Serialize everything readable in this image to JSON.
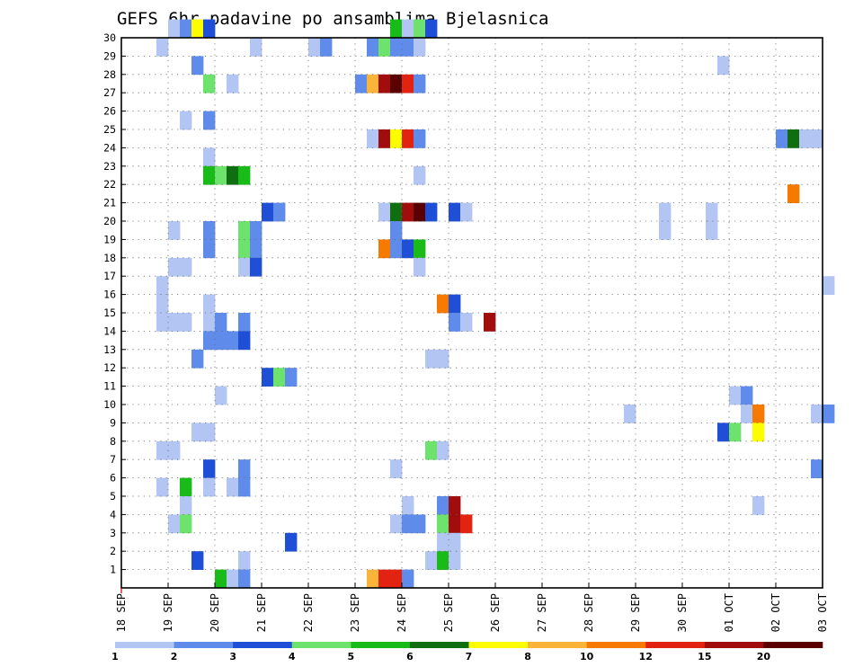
{
  "chart_data": {
    "type": "heatmap",
    "title": "GEFS 6hr padavine po ansamblima Bjelasnica",
    "ylim": [
      0,
      30
    ],
    "y_ticks": [
      "1",
      "2",
      "3",
      "4",
      "5",
      "6",
      "7",
      "8",
      "9",
      "10",
      "11",
      "12",
      "13",
      "14",
      "15",
      "16",
      "17",
      "18",
      "19",
      "20",
      "21",
      "22",
      "23",
      "24",
      "25",
      "26",
      "27",
      "28",
      "29",
      "30"
    ],
    "x_ticks": [
      "18 SEP",
      "19 SEP",
      "20 SEP",
      "21 SEP",
      "22 SEP",
      "23 SEP",
      "24 SEP",
      "25 SEP",
      "26 SEP",
      "27 SEP",
      "28 SEP",
      "29 SEP",
      "30 SEP",
      "01 OCT",
      "02 OCT",
      "03 OCT"
    ],
    "x_start": "18 SEP",
    "step_hours": 6,
    "grid": true,
    "colorbar": {
      "levels": [
        "1",
        "2",
        "3",
        "4",
        "5",
        "6",
        "7",
        "8",
        "10",
        "12",
        "15",
        "20"
      ],
      "colors": [
        "#b3c6f3",
        "#5f8ceb",
        "#1f4fd6",
        "#6de36d",
        "#19bb19",
        "#0f6e0f",
        "#fdfd00",
        "#fbb43a",
        "#f77a00",
        "#e32312",
        "#a10c0c",
        "#5a0000"
      ]
    },
    "cells": [
      [
        30,
        4,
        0
      ],
      [
        30,
        5,
        1
      ],
      [
        30,
        6,
        6
      ],
      [
        30,
        7,
        2
      ],
      [
        30,
        23,
        4
      ],
      [
        30,
        24,
        0
      ],
      [
        30,
        25,
        3
      ],
      [
        30,
        26,
        2
      ],
      [
        29,
        3,
        0
      ],
      [
        29,
        11,
        0
      ],
      [
        29,
        16,
        0
      ],
      [
        29,
        17,
        1
      ],
      [
        29,
        21,
        1
      ],
      [
        29,
        22,
        3
      ],
      [
        29,
        23,
        1
      ],
      [
        29,
        24,
        1
      ],
      [
        29,
        25,
        0
      ],
      [
        28,
        6,
        1
      ],
      [
        28,
        51,
        0
      ],
      [
        27,
        7,
        3
      ],
      [
        27,
        9,
        0
      ],
      [
        27,
        20,
        1
      ],
      [
        27,
        21,
        7
      ],
      [
        27,
        22,
        10
      ],
      [
        27,
        23,
        11
      ],
      [
        27,
        24,
        9
      ],
      [
        27,
        25,
        1
      ],
      [
        25,
        5,
        0
      ],
      [
        25,
        7,
        1
      ],
      [
        24,
        21,
        0
      ],
      [
        24,
        22,
        10
      ],
      [
        24,
        23,
        6
      ],
      [
        24,
        24,
        9
      ],
      [
        24,
        25,
        1
      ],
      [
        24,
        56,
        1
      ],
      [
        24,
        57,
        5
      ],
      [
        24,
        58,
        0
      ],
      [
        24,
        59,
        0
      ],
      [
        23,
        7,
        0
      ],
      [
        22,
        7,
        4
      ],
      [
        22,
        8,
        3
      ],
      [
        22,
        9,
        5
      ],
      [
        22,
        10,
        4
      ],
      [
        22,
        25,
        0
      ],
      [
        21,
        57,
        8
      ],
      [
        20,
        12,
        2
      ],
      [
        20,
        13,
        1
      ],
      [
        20,
        22,
        0
      ],
      [
        20,
        23,
        5
      ],
      [
        20,
        24,
        10
      ],
      [
        20,
        25,
        11
      ],
      [
        20,
        26,
        2
      ],
      [
        20,
        28,
        2
      ],
      [
        20,
        29,
        0
      ],
      [
        20,
        46,
        0
      ],
      [
        20,
        50,
        0
      ],
      [
        19,
        4,
        0
      ],
      [
        19,
        7,
        1
      ],
      [
        19,
        10,
        3
      ],
      [
        19,
        11,
        1
      ],
      [
        19,
        23,
        1
      ],
      [
        19,
        46,
        0
      ],
      [
        19,
        50,
        0
      ],
      [
        18,
        7,
        1
      ],
      [
        18,
        10,
        3
      ],
      [
        18,
        11,
        1
      ],
      [
        18,
        22,
        8
      ],
      [
        18,
        23,
        1
      ],
      [
        18,
        24,
        2
      ],
      [
        18,
        25,
        4
      ],
      [
        17,
        4,
        0
      ],
      [
        17,
        5,
        0
      ],
      [
        17,
        10,
        0
      ],
      [
        17,
        11,
        2
      ],
      [
        17,
        25,
        0
      ],
      [
        16,
        3,
        0
      ],
      [
        16,
        60,
        0
      ],
      [
        15,
        3,
        0
      ],
      [
        15,
        7,
        0
      ],
      [
        15,
        27,
        8
      ],
      [
        15,
        28,
        2
      ],
      [
        14,
        3,
        0
      ],
      [
        14,
        4,
        0
      ],
      [
        14,
        5,
        0
      ],
      [
        14,
        7,
        0
      ],
      [
        14,
        8,
        1
      ],
      [
        14,
        10,
        1
      ],
      [
        14,
        28,
        1
      ],
      [
        14,
        29,
        0
      ],
      [
        14,
        31,
        10
      ],
      [
        13,
        7,
        1
      ],
      [
        13,
        8,
        1
      ],
      [
        13,
        9,
        1
      ],
      [
        13,
        10,
        2
      ],
      [
        12,
        6,
        1
      ],
      [
        12,
        26,
        0
      ],
      [
        12,
        27,
        0
      ],
      [
        11,
        12,
        2
      ],
      [
        11,
        13,
        3
      ],
      [
        11,
        14,
        1
      ],
      [
        10,
        8,
        0
      ],
      [
        10,
        52,
        0
      ],
      [
        10,
        53,
        1
      ],
      [
        9,
        43,
        0
      ],
      [
        9,
        53,
        0
      ],
      [
        9,
        54,
        8
      ],
      [
        9,
        59,
        0
      ],
      [
        9,
        60,
        1
      ],
      [
        8,
        6,
        0
      ],
      [
        8,
        7,
        0
      ],
      [
        8,
        51,
        2
      ],
      [
        8,
        52,
        3
      ],
      [
        8,
        54,
        6
      ],
      [
        7,
        3,
        0
      ],
      [
        7,
        4,
        0
      ],
      [
        7,
        26,
        3
      ],
      [
        7,
        27,
        0
      ],
      [
        6,
        7,
        2
      ],
      [
        6,
        10,
        1
      ],
      [
        6,
        23,
        0
      ],
      [
        6,
        59,
        1
      ],
      [
        5,
        3,
        0
      ],
      [
        5,
        5,
        4
      ],
      [
        5,
        7,
        0
      ],
      [
        5,
        9,
        0
      ],
      [
        5,
        10,
        1
      ],
      [
        4,
        5,
        0
      ],
      [
        4,
        24,
        0
      ],
      [
        4,
        27,
        1
      ],
      [
        4,
        28,
        10
      ],
      [
        4,
        54,
        0
      ],
      [
        3,
        4,
        0
      ],
      [
        3,
        5,
        3
      ],
      [
        3,
        23,
        0
      ],
      [
        3,
        24,
        1
      ],
      [
        3,
        25,
        1
      ],
      [
        3,
        27,
        3
      ],
      [
        3,
        28,
        10
      ],
      [
        3,
        29,
        9
      ],
      [
        2,
        14,
        2
      ],
      [
        2,
        27,
        0
      ],
      [
        2,
        28,
        0
      ],
      [
        1,
        6,
        2
      ],
      [
        1,
        10,
        0
      ],
      [
        1,
        26,
        0
      ],
      [
        1,
        27,
        4
      ],
      [
        1,
        28,
        0
      ],
      [
        0,
        8,
        4
      ],
      [
        0,
        9,
        0
      ],
      [
        0,
        10,
        1
      ],
      [
        0,
        21,
        7
      ],
      [
        0,
        22,
        9
      ],
      [
        0,
        23,
        9
      ],
      [
        0,
        24,
        1
      ]
    ]
  }
}
